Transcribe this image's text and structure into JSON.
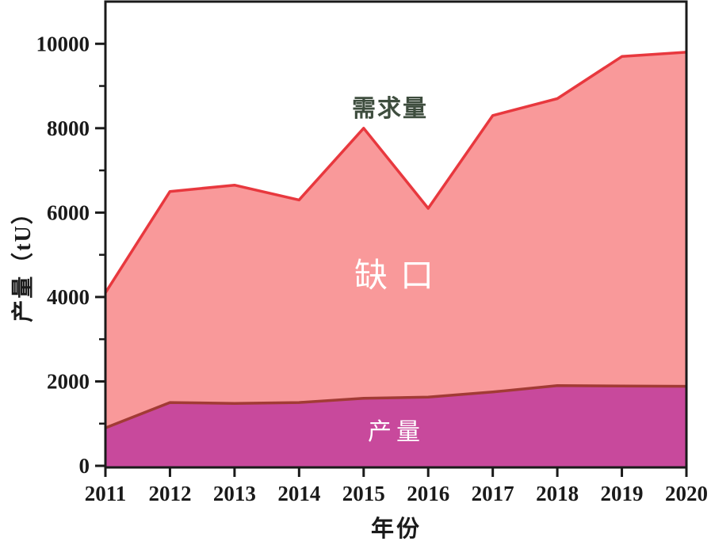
{
  "chart_data": {
    "type": "area",
    "title": "",
    "x": [
      2011,
      2012,
      2013,
      2014,
      2015,
      2016,
      2017,
      2018,
      2019,
      2020
    ],
    "series": [
      {
        "name": "需求量",
        "values": [
          4100,
          6500,
          6650,
          6300,
          8000,
          6100,
          8300,
          8700,
          9700,
          9800
        ],
        "line_color": "#E8383E",
        "fill_color": "#F9999A"
      },
      {
        "name": "产量",
        "values": [
          900,
          1500,
          1480,
          1500,
          1600,
          1630,
          1750,
          1900,
          1890,
          1885
        ],
        "line_color": "#A23B35",
        "fill_color": "#C8499C"
      }
    ],
    "xlabel": "年份",
    "ylabel": "产量（tU）",
    "ylim": [
      0,
      11000
    ],
    "y_major_ticks": [
      0,
      2000,
      4000,
      6000,
      8000,
      10000
    ],
    "y_minor_ticks": [
      1000,
      3000,
      5000,
      7000,
      9000
    ],
    "grid": false,
    "legend_position": "none",
    "axis_color": "#1A1A1A",
    "annotations": [
      {
        "text": "需求量",
        "color": "#3E4D3E",
        "role": "demand-curve-label"
      },
      {
        "text": "缺口",
        "color": "#FFFFFF",
        "role": "gap-area-label"
      },
      {
        "text": "产量",
        "color": "#FFFFFF",
        "role": "production-area-label"
      }
    ]
  }
}
